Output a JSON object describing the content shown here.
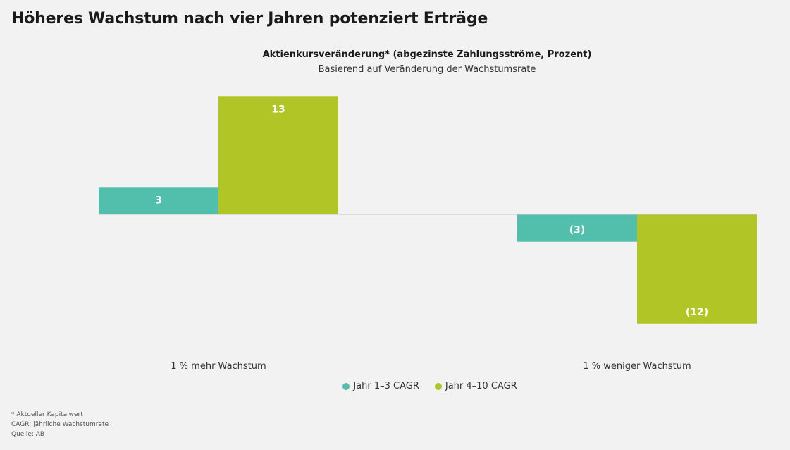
{
  "title": "Höheres Wachstum nach vier Jahren potenziert Erträge",
  "chart_data": {
    "type": "bar",
    "title": "Aktienkursveränderung* (abgezinste Zahlungsströme, Prozent)",
    "subtitle": "Basierend auf Veränderung der Wachstumsrate",
    "categories": [
      "1 % mehr Wachstum",
      "1 % weniger Wachstum"
    ],
    "series": [
      {
        "name": "Jahr 1–3 CAGR",
        "values": [
          3,
          -3
        ],
        "labels": [
          "3",
          "(3)"
        ],
        "color": "#52bfad"
      },
      {
        "name": "Jahr 4–10 CAGR",
        "values": [
          13,
          -12
        ],
        "labels": [
          "13",
          "(12)"
        ],
        "color": "#b1c527"
      }
    ],
    "ylim": [
      -13,
      13
    ],
    "grid": false,
    "legend_position": "bottom-center",
    "baseline_color": "#c9c9c9",
    "label_color": "#ffffff"
  },
  "footnotes": [
    "* Aktueller Kapitalwert",
    "CAGR: jährliche Wachstumrate",
    "Quelle: AB"
  ]
}
